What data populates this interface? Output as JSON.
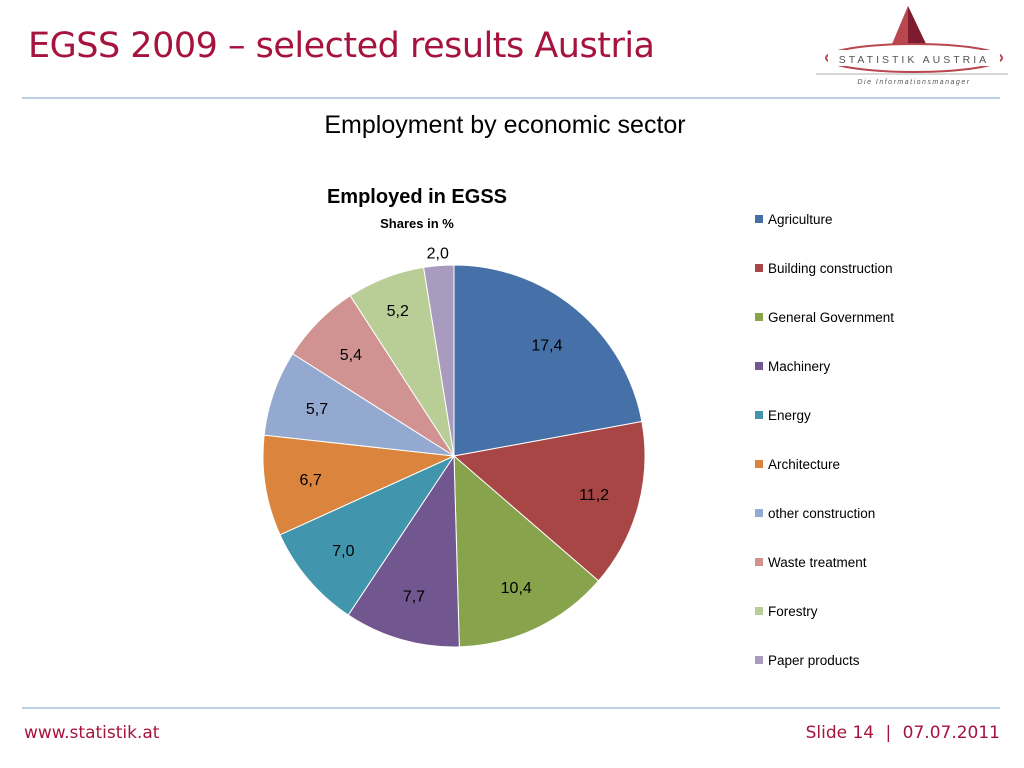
{
  "slide": {
    "title": "EGSS 2009 – selected results Austria",
    "subtitle": "Employment by economic sector"
  },
  "logo": {
    "name": "STATISTIK AUSTRIA",
    "tagline": "Die Informationsmanager"
  },
  "footer": {
    "website": "www.statistik.at",
    "slide_label": "Slide 14",
    "separator": "|",
    "date": "07.07.2011"
  },
  "colors": {
    "accent": "#a6133e",
    "rule": "#bfcfe3"
  },
  "chart_data": {
    "type": "pie",
    "title": "Employed in EGSS",
    "subtitle": "Shares in %",
    "start_angle": "12 o'clock",
    "direction": "clockwise",
    "legend_position": "right",
    "categories": [
      "Agriculture",
      "Building construction",
      "General Government",
      "Machinery",
      "Energy",
      "Architecture",
      "other construction",
      "Waste treatment",
      "Forestry",
      "Paper products"
    ],
    "values": [
      17.4,
      11.2,
      10.4,
      7.7,
      7.0,
      6.7,
      5.7,
      5.4,
      5.2,
      2.0
    ],
    "labels": [
      "17,4",
      "11,2",
      "10,4",
      "7,7",
      "7,0",
      "6,7",
      "5,7",
      "5,4",
      "5,2",
      "2,0"
    ],
    "colors": [
      "#4671a8",
      "#a84645",
      "#87a44d",
      "#71568f",
      "#4196ae",
      "#db843d",
      "#93a9cf",
      "#d19392",
      "#b9ce96",
      "#a99bbd"
    ]
  }
}
